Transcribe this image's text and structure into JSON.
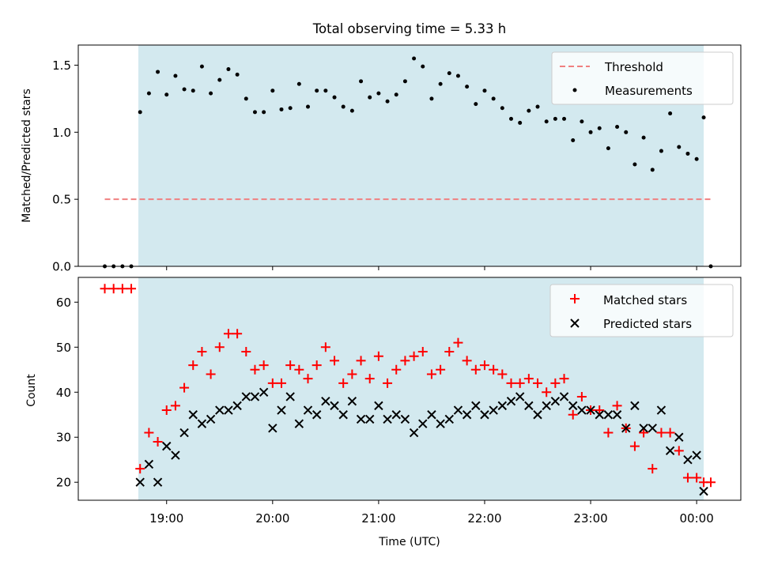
{
  "chart_data": [
    {
      "type": "scatter",
      "title": "Total observing time = 5.33 h",
      "xlabel": "",
      "ylabel": "Matched/Predicted stars",
      "xlim": [
        "18:10",
        "00:25"
      ],
      "ylim": [
        0,
        1.65
      ],
      "yticks": [
        0.0,
        0.5,
        1.0,
        1.5
      ],
      "ytick_labels": [
        "0.0",
        "0.5",
        "1.0",
        "1.5"
      ],
      "xtick_labels_visible": false,
      "shaded_span": [
        "18:44",
        "00:04"
      ],
      "shade_color": "#d3e9ef",
      "legend_location": "upper right",
      "threshold": {
        "name": "Threshold",
        "value": 0.5,
        "x_range": [
          "18:25",
          "00:08"
        ],
        "color": "#f08080",
        "style": "dashed"
      },
      "series": [
        {
          "name": "Measurements",
          "color": "#000000",
          "marker": "dot",
          "x": [
            "18:25",
            "18:30",
            "18:35",
            "18:40",
            "18:45",
            "18:50",
            "18:55",
            "19:00",
            "19:05",
            "19:10",
            "19:15",
            "19:20",
            "19:25",
            "19:30",
            "19:35",
            "19:40",
            "19:45",
            "19:50",
            "19:55",
            "20:00",
            "20:05",
            "20:10",
            "20:15",
            "20:20",
            "20:25",
            "20:30",
            "20:35",
            "20:40",
            "20:45",
            "20:50",
            "20:55",
            "21:00",
            "21:05",
            "21:10",
            "21:15",
            "21:20",
            "21:25",
            "21:30",
            "21:35",
            "21:40",
            "21:45",
            "21:50",
            "21:55",
            "22:00",
            "22:05",
            "22:10",
            "22:15",
            "22:20",
            "22:25",
            "22:30",
            "22:35",
            "22:40",
            "22:45",
            "22:50",
            "22:55",
            "23:00",
            "23:05",
            "23:10",
            "23:15",
            "23:20",
            "23:25",
            "23:30",
            "23:35",
            "23:40",
            "23:45",
            "23:50",
            "23:55",
            "00:00",
            "00:04",
            "00:08"
          ],
          "y": [
            0,
            0,
            0,
            0,
            1.15,
            1.29,
            1.45,
            1.28,
            1.42,
            1.32,
            1.31,
            1.49,
            1.29,
            1.39,
            1.47,
            1.43,
            1.25,
            1.15,
            1.15,
            1.31,
            1.17,
            1.18,
            1.36,
            1.19,
            1.31,
            1.31,
            1.26,
            1.19,
            1.16,
            1.38,
            1.26,
            1.29,
            1.23,
            1.28,
            1.38,
            1.55,
            1.49,
            1.25,
            1.36,
            1.44,
            1.42,
            1.34,
            1.21,
            1.31,
            1.25,
            1.18,
            1.1,
            1.07,
            1.16,
            1.19,
            1.08,
            1.1,
            1.1,
            0.94,
            1.08,
            1.0,
            1.03,
            0.88,
            1.04,
            1.0,
            0.76,
            0.96,
            0.72,
            0.86,
            1.14,
            0.89,
            0.84,
            0.8,
            1.11,
            0
          ]
        }
      ]
    },
    {
      "type": "scatter",
      "title": "",
      "xlabel": "Time (UTC)",
      "ylabel": "Count",
      "xlim": [
        "18:10",
        "00:25"
      ],
      "ylim": [
        16,
        65.5
      ],
      "yticks": [
        20,
        30,
        40,
        50,
        60
      ],
      "ytick_labels": [
        "20",
        "30",
        "40",
        "50",
        "60"
      ],
      "xticks": [
        "19:00",
        "20:00",
        "21:00",
        "22:00",
        "23:00",
        "00:00"
      ],
      "xtick_labels": [
        "19:00",
        "20:00",
        "21:00",
        "22:00",
        "23:00",
        "00:00"
      ],
      "shaded_span": [
        "18:44",
        "00:04"
      ],
      "shade_color": "#d3e9ef",
      "legend_location": "upper right",
      "series": [
        {
          "name": "Matched stars",
          "color": "#ff0000",
          "marker": "plus",
          "x": [
            "18:25",
            "18:30",
            "18:35",
            "18:40",
            "18:45",
            "18:50",
            "18:55",
            "19:00",
            "19:05",
            "19:10",
            "19:15",
            "19:20",
            "19:25",
            "19:30",
            "19:35",
            "19:40",
            "19:45",
            "19:50",
            "19:55",
            "20:00",
            "20:05",
            "20:10",
            "20:15",
            "20:20",
            "20:25",
            "20:30",
            "20:35",
            "20:40",
            "20:45",
            "20:50",
            "20:55",
            "21:00",
            "21:05",
            "21:10",
            "21:15",
            "21:20",
            "21:25",
            "21:30",
            "21:35",
            "21:40",
            "21:45",
            "21:50",
            "21:55",
            "22:00",
            "22:05",
            "22:10",
            "22:15",
            "22:20",
            "22:25",
            "22:30",
            "22:35",
            "22:40",
            "22:45",
            "22:50",
            "22:55",
            "23:00",
            "23:05",
            "23:10",
            "23:15",
            "23:20",
            "23:25",
            "23:30",
            "23:35",
            "23:40",
            "23:45",
            "23:50",
            "23:55",
            "00:00",
            "00:04",
            "00:08"
          ],
          "y": [
            63,
            63,
            63,
            63,
            23,
            31,
            29,
            36,
            37,
            41,
            46,
            49,
            44,
            50,
            53,
            53,
            49,
            45,
            46,
            42,
            42,
            46,
            45,
            43,
            46,
            50,
            47,
            42,
            44,
            47,
            43,
            48,
            42,
            45,
            47,
            48,
            49,
            44,
            45,
            49,
            51,
            47,
            45,
            46,
            45,
            44,
            42,
            42,
            43,
            42,
            40,
            42,
            43,
            35,
            39,
            36,
            36,
            31,
            37,
            32,
            28,
            31,
            23,
            31,
            31,
            27,
            21,
            21,
            20,
            20
          ]
        },
        {
          "name": "Predicted stars",
          "color": "#000000",
          "marker": "x",
          "x": [
            "18:45",
            "18:50",
            "18:55",
            "19:00",
            "19:05",
            "19:10",
            "19:15",
            "19:20",
            "19:25",
            "19:30",
            "19:35",
            "19:40",
            "19:45",
            "19:50",
            "19:55",
            "20:00",
            "20:05",
            "20:10",
            "20:15",
            "20:20",
            "20:25",
            "20:30",
            "20:35",
            "20:40",
            "20:45",
            "20:50",
            "20:55",
            "21:00",
            "21:05",
            "21:10",
            "21:15",
            "21:20",
            "21:25",
            "21:30",
            "21:35",
            "21:40",
            "21:45",
            "21:50",
            "21:55",
            "22:00",
            "22:05",
            "22:10",
            "22:15",
            "22:20",
            "22:25",
            "22:30",
            "22:35",
            "22:40",
            "22:45",
            "22:50",
            "22:55",
            "23:00",
            "23:05",
            "23:10",
            "23:15",
            "23:20",
            "23:25",
            "23:30",
            "23:35",
            "23:40",
            "23:45",
            "23:50",
            "23:55",
            "00:00",
            "00:04"
          ],
          "y": [
            20,
            24,
            20,
            28,
            26,
            31,
            35,
            33,
            34,
            36,
            36,
            37,
            39,
            39,
            40,
            32,
            36,
            39,
            33,
            36,
            35,
            38,
            37,
            35,
            38,
            34,
            34,
            37,
            34,
            35,
            34,
            31,
            33,
            35,
            33,
            34,
            36,
            35,
            37,
            35,
            36,
            37,
            38,
            39,
            37,
            35,
            37,
            38,
            39,
            37,
            36,
            36,
            35,
            35,
            35,
            32,
            37,
            32,
            32,
            36,
            27,
            30,
            25,
            26,
            18
          ]
        }
      ]
    }
  ]
}
